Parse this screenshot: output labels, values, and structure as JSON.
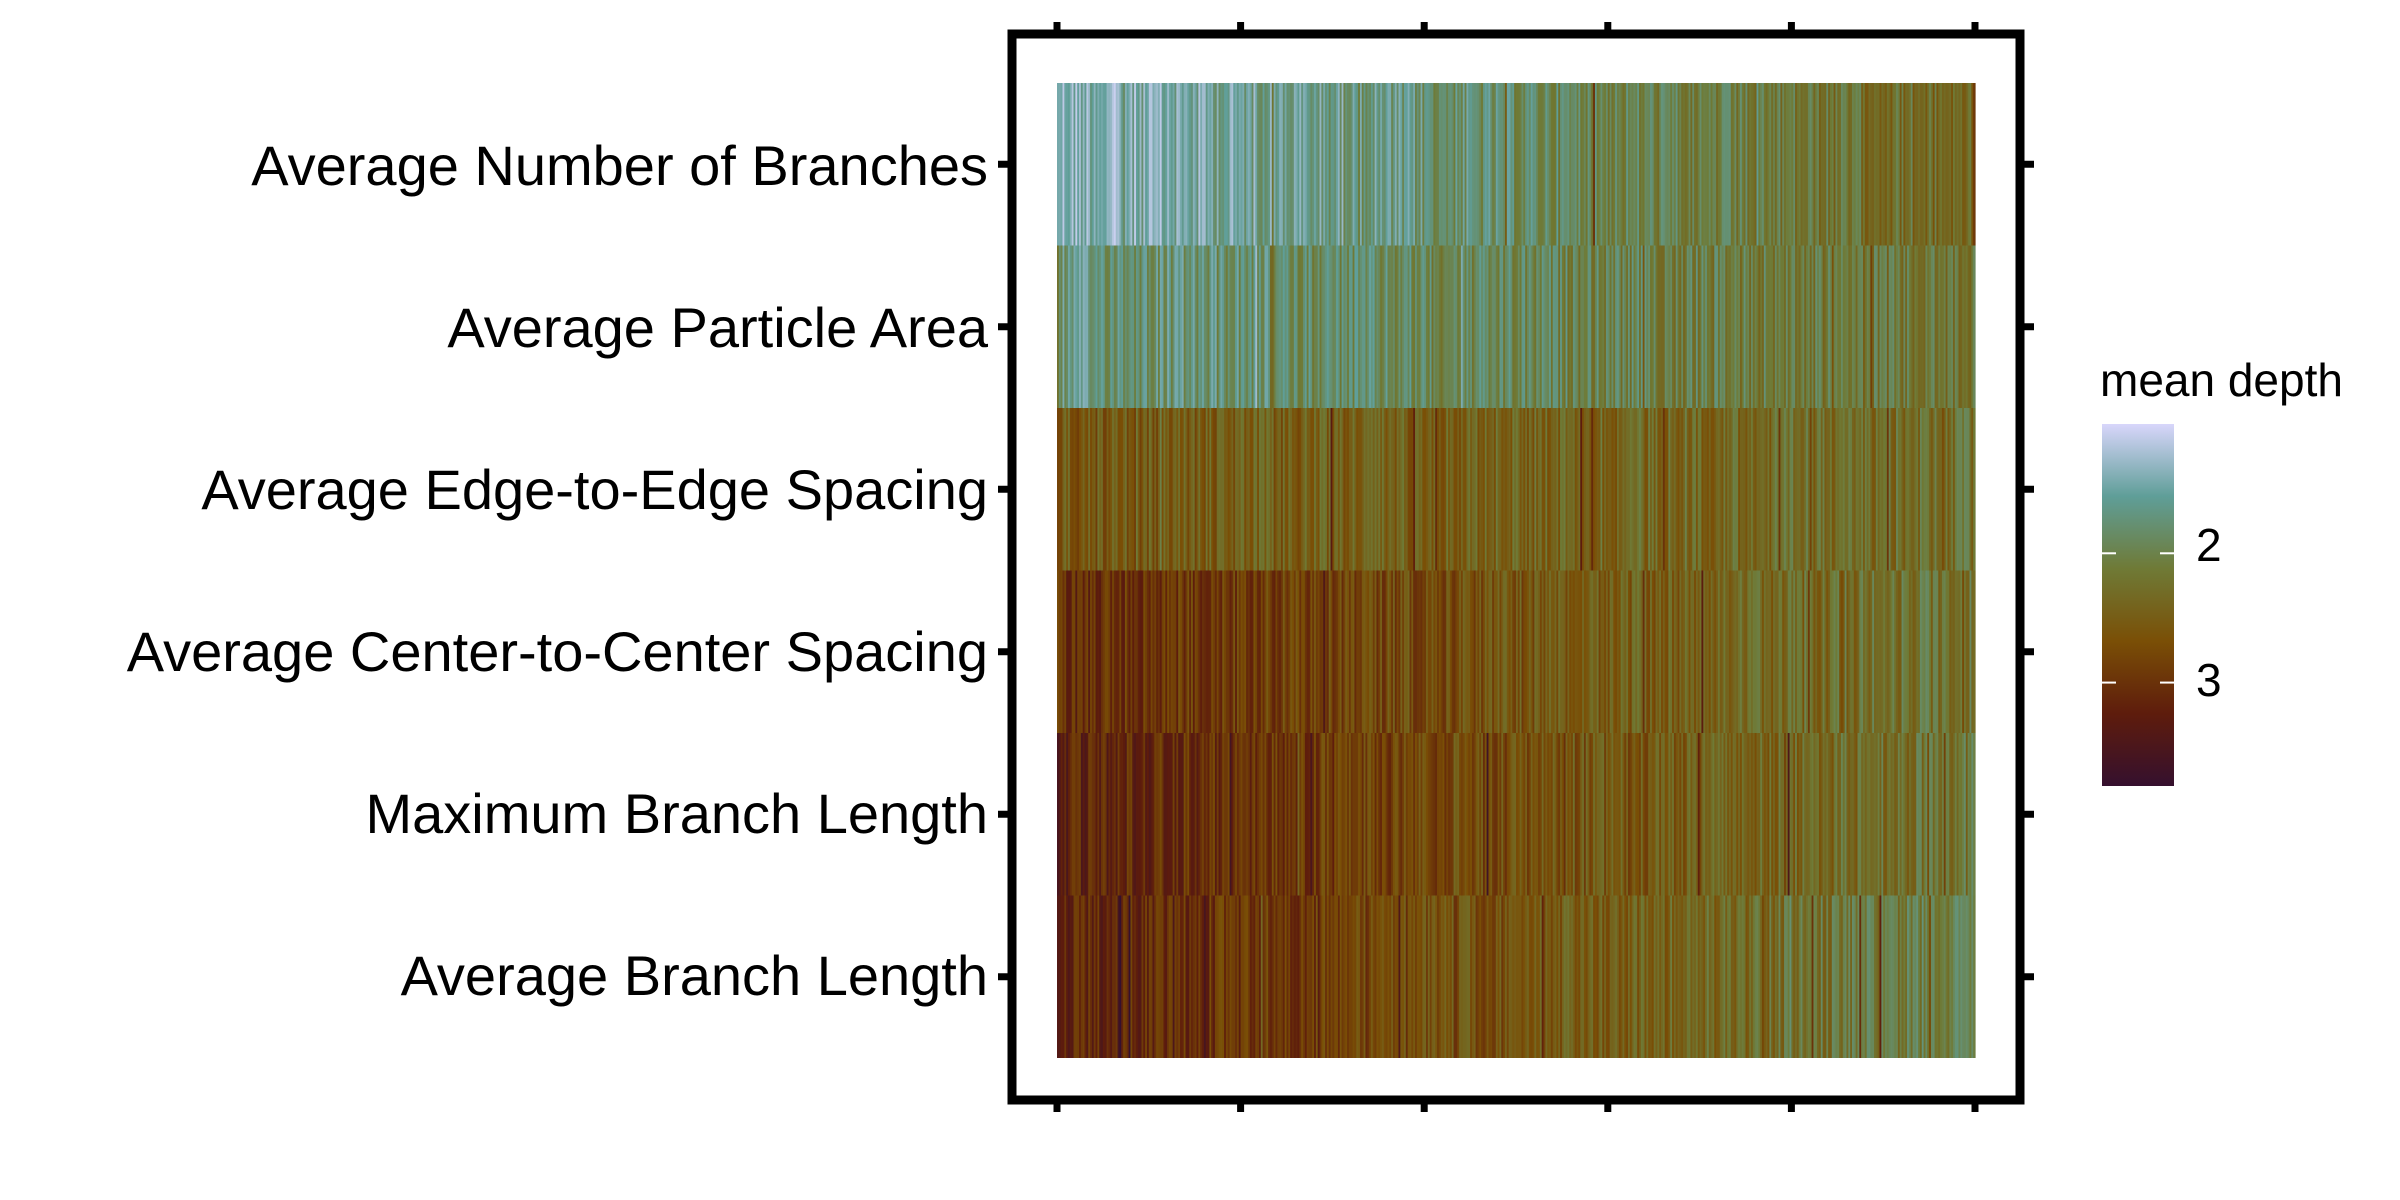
{
  "chart_data": {
    "type": "heatmap",
    "title": "",
    "xlabel": "",
    "ylabel": "",
    "x_tick_labels": [
      "",
      "",
      "",
      "",
      "",
      ""
    ],
    "rows": [
      "Average Number of Branches",
      "Average Particle Area",
      "Average Edge-to-Edge Spacing",
      "Average Center-to-Center Spacing",
      "Maximum Branch Length",
      "Average Branch Length"
    ],
    "columns_count": 500,
    "row_depth_profile": [
      {
        "row": "Average Number of Branches",
        "mean_depth_start": 1.35,
        "mean_depth_end": 2.35
      },
      {
        "row": "Average Particle Area",
        "mean_depth_start": 1.7,
        "mean_depth_end": 2.2
      },
      {
        "row": "Average Edge-to-Edge Spacing",
        "mean_depth_start": 2.55,
        "mean_depth_end": 2.25
      },
      {
        "row": "Average Center-to-Center Spacing",
        "mean_depth_start": 3.05,
        "mean_depth_end": 2.15
      },
      {
        "row": "Maximum Branch Length",
        "mean_depth_start": 3.2,
        "mean_depth_end": 2.15
      },
      {
        "row": "Average Branch Length",
        "mean_depth_start": 3.2,
        "mean_depth_end": 2.0
      }
    ],
    "legend": {
      "title": "mean depth",
      "scale": "reversed",
      "range": [
        1.0,
        3.8
      ],
      "ticks": [
        2,
        3
      ],
      "tick_labels": [
        "2",
        "3"
      ],
      "colors": [
        "#d8d6fb",
        "#5f9e98",
        "#6f7a36",
        "#7a4f06",
        "#5e1c0c",
        "#35102e"
      ],
      "placement": "right"
    },
    "grid": false
  }
}
